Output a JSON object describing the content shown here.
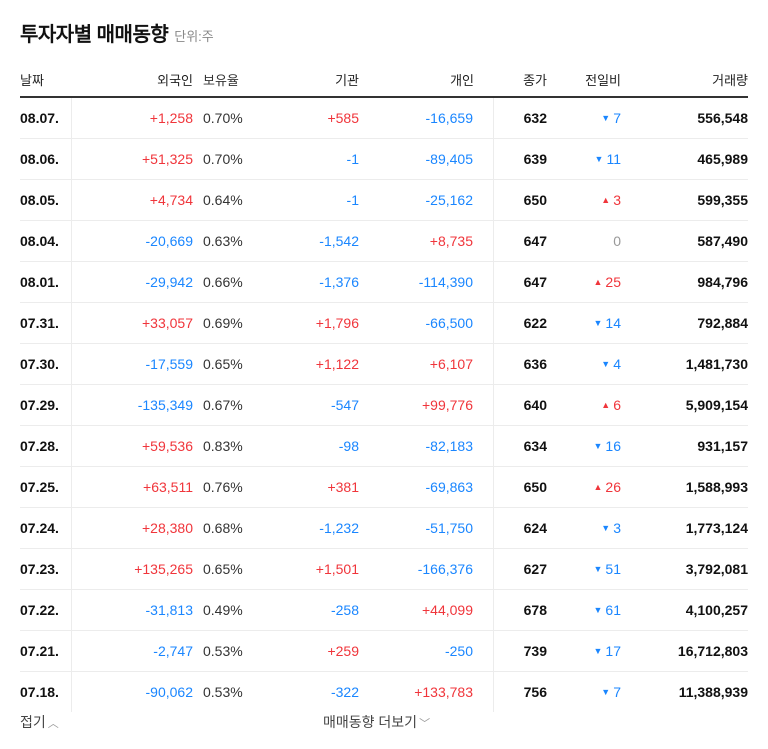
{
  "title": "투자자별 매매동향",
  "unit": "단위:주",
  "headers": {
    "date": "날짜",
    "foreign": "외국인",
    "holding": "보유율",
    "institution": "기관",
    "individual": "개인",
    "close": "종가",
    "change": "전일비",
    "volume": "거래량"
  },
  "colors": {
    "up": "#f0353b",
    "down": "#1a86ff",
    "flat": "#999999"
  },
  "rows": [
    {
      "date": "08.07.",
      "foreign": "+1,258",
      "holding": "0.70%",
      "institution": "+585",
      "individual": "-16,659",
      "close": "632",
      "dir": "down",
      "change": "7",
      "volume": "556,548"
    },
    {
      "date": "08.06.",
      "foreign": "+51,325",
      "holding": "0.70%",
      "institution": "-1",
      "individual": "-89,405",
      "close": "639",
      "dir": "down",
      "change": "11",
      "volume": "465,989"
    },
    {
      "date": "08.05.",
      "foreign": "+4,734",
      "holding": "0.64%",
      "institution": "-1",
      "individual": "-25,162",
      "close": "650",
      "dir": "up",
      "change": "3",
      "volume": "599,355"
    },
    {
      "date": "08.04.",
      "foreign": "-20,669",
      "holding": "0.63%",
      "institution": "-1,542",
      "individual": "+8,735",
      "close": "647",
      "dir": "flat",
      "change": "0",
      "volume": "587,490"
    },
    {
      "date": "08.01.",
      "foreign": "-29,942",
      "holding": "0.66%",
      "institution": "-1,376",
      "individual": "-114,390",
      "close": "647",
      "dir": "up",
      "change": "25",
      "volume": "984,796"
    },
    {
      "date": "07.31.",
      "foreign": "+33,057",
      "holding": "0.69%",
      "institution": "+1,796",
      "individual": "-66,500",
      "close": "622",
      "dir": "down",
      "change": "14",
      "volume": "792,884"
    },
    {
      "date": "07.30.",
      "foreign": "-17,559",
      "holding": "0.65%",
      "institution": "+1,122",
      "individual": "+6,107",
      "close": "636",
      "dir": "down",
      "change": "4",
      "volume": "1,481,730"
    },
    {
      "date": "07.29.",
      "foreign": "-135,349",
      "holding": "0.67%",
      "institution": "-547",
      "individual": "+99,776",
      "close": "640",
      "dir": "up",
      "change": "6",
      "volume": "5,909,154"
    },
    {
      "date": "07.28.",
      "foreign": "+59,536",
      "holding": "0.83%",
      "institution": "-98",
      "individual": "-82,183",
      "close": "634",
      "dir": "down",
      "change": "16",
      "volume": "931,157"
    },
    {
      "date": "07.25.",
      "foreign": "+63,511",
      "holding": "0.76%",
      "institution": "+381",
      "individual": "-69,863",
      "close": "650",
      "dir": "up",
      "change": "26",
      "volume": "1,588,993"
    },
    {
      "date": "07.24.",
      "foreign": "+28,380",
      "holding": "0.68%",
      "institution": "-1,232",
      "individual": "-51,750",
      "close": "624",
      "dir": "down",
      "change": "3",
      "volume": "1,773,124"
    },
    {
      "date": "07.23.",
      "foreign": "+135,265",
      "holding": "0.65%",
      "institution": "+1,501",
      "individual": "-166,376",
      "close": "627",
      "dir": "down",
      "change": "51",
      "volume": "3,792,081"
    },
    {
      "date": "07.22.",
      "foreign": "-31,813",
      "holding": "0.49%",
      "institution": "-258",
      "individual": "+44,099",
      "close": "678",
      "dir": "down",
      "change": "61",
      "volume": "4,100,257"
    },
    {
      "date": "07.21.",
      "foreign": "-2,747",
      "holding": "0.53%",
      "institution": "+259",
      "individual": "-250",
      "close": "739",
      "dir": "down",
      "change": "17",
      "volume": "16,712,803"
    },
    {
      "date": "07.18.",
      "foreign": "-90,062",
      "holding": "0.53%",
      "institution": "-322",
      "individual": "+133,783",
      "close": "756",
      "dir": "down",
      "change": "7",
      "volume": "11,388,939"
    }
  ],
  "footer": {
    "fold": "접기",
    "more": "매매동향 더보기"
  }
}
